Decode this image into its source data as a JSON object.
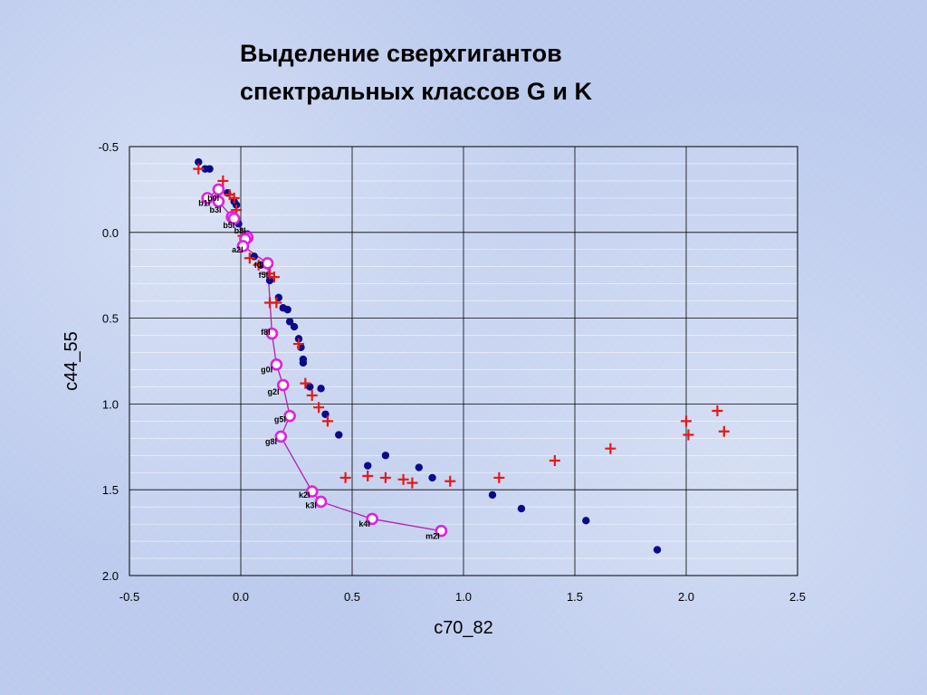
{
  "title": {
    "line1": "Выделение сверхгигантов",
    "line2": "спектральных классов G и K"
  },
  "chart_data": {
    "type": "scatter",
    "xlabel": "c70_82",
    "ylabel": "c44_55",
    "xlim": [
      -0.5,
      2.5
    ],
    "ylim": [
      -0.5,
      2.0
    ],
    "y_inverted": true,
    "x_ticks": [
      "-0.5",
      "0.0",
      "0.5",
      "1.0",
      "1.5",
      "2.0",
      "2.5"
    ],
    "y_ticks": [
      "-0.5",
      "0.0",
      "0.5",
      "1.0",
      "1.5",
      "2.0"
    ],
    "grid": true,
    "colors": {
      "dots": "#0a0a8c",
      "plus": "#e41a1a",
      "line": "#b020b0",
      "ring": "#e020e0"
    },
    "series": [
      {
        "marker": "dot",
        "points": [
          [
            -0.19,
            -0.41
          ],
          [
            -0.16,
            -0.37
          ],
          [
            -0.14,
            -0.37
          ],
          [
            -0.06,
            -0.23
          ],
          [
            -0.03,
            -0.18
          ],
          [
            -0.02,
            -0.16
          ],
          [
            -0.01,
            -0.05
          ],
          [
            0.03,
            0.01
          ],
          [
            0.06,
            0.14
          ],
          [
            0.09,
            0.19
          ],
          [
            0.13,
            0.28
          ],
          [
            0.17,
            0.38
          ],
          [
            0.19,
            0.44
          ],
          [
            0.21,
            0.45
          ],
          [
            0.22,
            0.52
          ],
          [
            0.24,
            0.55
          ],
          [
            0.26,
            0.62
          ],
          [
            0.27,
            0.67
          ],
          [
            0.28,
            0.74
          ],
          [
            0.28,
            0.76
          ],
          [
            0.31,
            0.9
          ],
          [
            0.36,
            0.91
          ],
          [
            0.38,
            1.06
          ],
          [
            0.44,
            1.18
          ],
          [
            0.57,
            1.36
          ],
          [
            0.65,
            1.3
          ],
          [
            0.8,
            1.37
          ],
          [
            0.86,
            1.43
          ],
          [
            1.13,
            1.53
          ],
          [
            1.26,
            1.61
          ],
          [
            1.55,
            1.68
          ],
          [
            1.87,
            1.85
          ]
        ]
      },
      {
        "marker": "plus",
        "points": [
          [
            -0.19,
            -0.37
          ],
          [
            -0.08,
            -0.3
          ],
          [
            -0.05,
            -0.22
          ],
          [
            -0.03,
            -0.2
          ],
          [
            -0.02,
            -0.13
          ],
          [
            0.01,
            0.02
          ],
          [
            0.04,
            0.15
          ],
          [
            0.08,
            0.19
          ],
          [
            0.13,
            0.24
          ],
          [
            0.15,
            0.26
          ],
          [
            0.13,
            0.41
          ],
          [
            0.16,
            0.41
          ],
          [
            0.26,
            0.65
          ],
          [
            0.29,
            0.88
          ],
          [
            0.32,
            0.95
          ],
          [
            0.35,
            1.02
          ],
          [
            0.39,
            1.1
          ],
          [
            0.47,
            1.43
          ],
          [
            0.57,
            1.42
          ],
          [
            0.65,
            1.43
          ],
          [
            0.73,
            1.44
          ],
          [
            0.77,
            1.46
          ],
          [
            0.94,
            1.45
          ],
          [
            1.16,
            1.43
          ],
          [
            1.41,
            1.33
          ],
          [
            1.66,
            1.26
          ],
          [
            2.0,
            1.1
          ],
          [
            2.01,
            1.18
          ],
          [
            2.14,
            1.04
          ],
          [
            2.17,
            1.16
          ]
        ]
      },
      {
        "marker": "ring-line",
        "points": [
          [
            -0.1,
            -0.25
          ],
          [
            -0.15,
            -0.2
          ],
          [
            -0.1,
            -0.18
          ],
          [
            -0.04,
            -0.09
          ],
          [
            -0.03,
            -0.08
          ],
          [
            0.03,
            0.03
          ],
          [
            0.02,
            0.04
          ],
          [
            0.01,
            0.08
          ],
          [
            0.12,
            0.18
          ],
          [
            0.14,
            0.59
          ],
          [
            0.16,
            0.77
          ],
          [
            0.19,
            0.89
          ],
          [
            0.22,
            1.07
          ],
          [
            0.18,
            1.19
          ],
          [
            0.32,
            1.51
          ],
          [
            0.36,
            1.57
          ],
          [
            0.59,
            1.67
          ],
          [
            0.9,
            1.74
          ]
        ],
        "labels": [
          {
            "text": "b0I",
            "x": -0.15,
            "y": -0.2
          },
          {
            "text": "b1I",
            "x": -0.19,
            "y": -0.17
          },
          {
            "text": "b3I",
            "x": -0.14,
            "y": -0.13
          },
          {
            "text": "b5I",
            "x": -0.08,
            "y": -0.04
          },
          {
            "text": "b8I",
            "x": -0.03,
            "y": -0.01
          },
          {
            "text": "a2I",
            "x": -0.04,
            "y": 0.1
          },
          {
            "text": "f0I",
            "x": 0.06,
            "y": 0.19
          },
          {
            "text": "f5I",
            "x": 0.08,
            "y": 0.25
          },
          {
            "text": "f8I",
            "x": 0.09,
            "y": 0.58
          },
          {
            "text": "g0I",
            "x": 0.09,
            "y": 0.8
          },
          {
            "text": "g2I",
            "x": 0.12,
            "y": 0.93
          },
          {
            "text": "g5I",
            "x": 0.15,
            "y": 1.09
          },
          {
            "text": "g8I",
            "x": 0.11,
            "y": 1.22
          },
          {
            "text": "k2I",
            "x": 0.26,
            "y": 1.53
          },
          {
            "text": "k3I",
            "x": 0.29,
            "y": 1.59
          },
          {
            "text": "k4I",
            "x": 0.53,
            "y": 1.7
          },
          {
            "text": "m2I",
            "x": 0.83,
            "y": 1.77
          }
        ]
      }
    ]
  }
}
